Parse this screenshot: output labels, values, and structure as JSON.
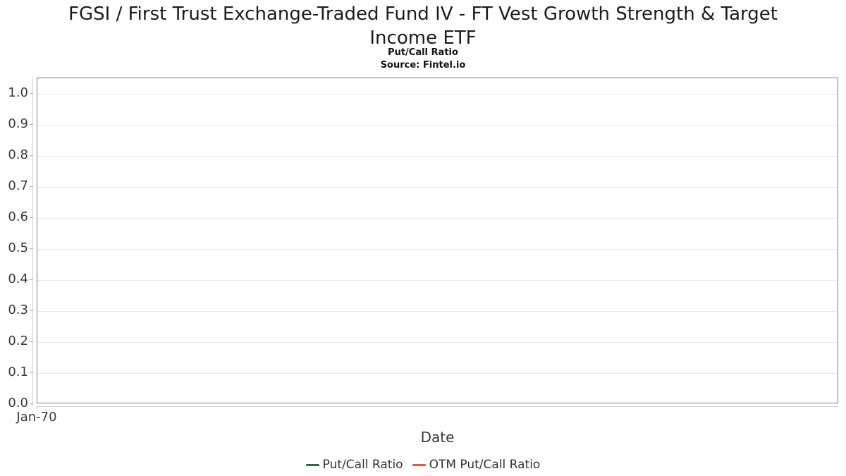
{
  "header": {
    "title_lines": [
      "FGSI / First Trust Exchange-Traded Fund IV - FT Vest Growth Strength & Target",
      "Income ETF"
    ],
    "subtitle": "Put/Call Ratio",
    "source": "Source: Fintel.io"
  },
  "chart_data": {
    "type": "line",
    "title": "FGSI / First Trust Exchange-Traded Fund IV - FT Vest Growth Strength & Target Income ETF",
    "subtitle": "Put/Call Ratio",
    "source": "Source: Fintel.io",
    "xlabel": "Date",
    "ylabel": "",
    "ylim": [
      0,
      1.05
    ],
    "ytick_values": [
      0.0,
      0.1,
      0.2,
      0.3,
      0.4,
      0.5,
      0.6,
      0.7,
      0.8,
      0.9,
      1.0
    ],
    "ytick_labels": [
      "0.0",
      "0.1",
      "0.2",
      "0.3",
      "0.4",
      "0.5",
      "0.6",
      "0.7",
      "0.8",
      "0.9",
      "1.0"
    ],
    "xticks": [
      {
        "label": "Jan-70",
        "frac": 0
      }
    ],
    "grid": "horizontal",
    "legend_position": "bottom-center",
    "plot_empty": true,
    "series": [
      {
        "name": "Put/Call Ratio",
        "color": "#2f6b3f",
        "x": [],
        "y": []
      },
      {
        "name": "OTM Put/Call Ratio",
        "color": "#f2554b",
        "x": [],
        "y": []
      }
    ]
  },
  "colors": {
    "background": "#ffffff",
    "plot_border": "#7a7a7a",
    "gridline": "#e6e6e6",
    "axis_line": "#cfcfcf",
    "tick": "#b5b5b5",
    "title_text": "#1c1c1c",
    "axis_text": "#3a3a3a",
    "legend_text": "#333333"
  }
}
